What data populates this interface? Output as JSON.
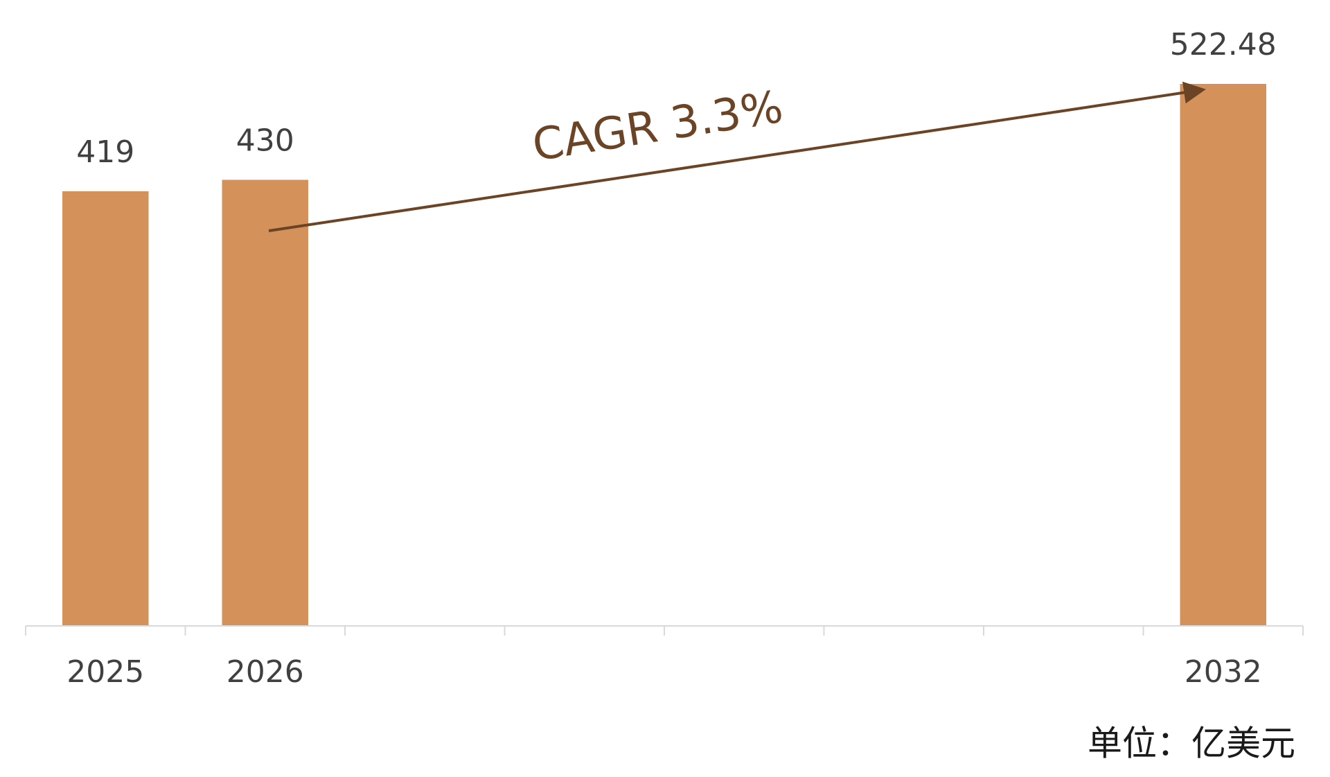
{
  "chart_data": {
    "type": "bar",
    "categories": [
      "2025",
      "2026",
      null,
      null,
      null,
      null,
      null,
      "2032"
    ],
    "values": [
      419,
      430,
      null,
      null,
      null,
      null,
      null,
      522.48
    ],
    "color": "#d4915a",
    "ylim": [
      0,
      600
    ],
    "annotation": "CAGR  3.3%",
    "unit_label": "单位：亿美元"
  }
}
